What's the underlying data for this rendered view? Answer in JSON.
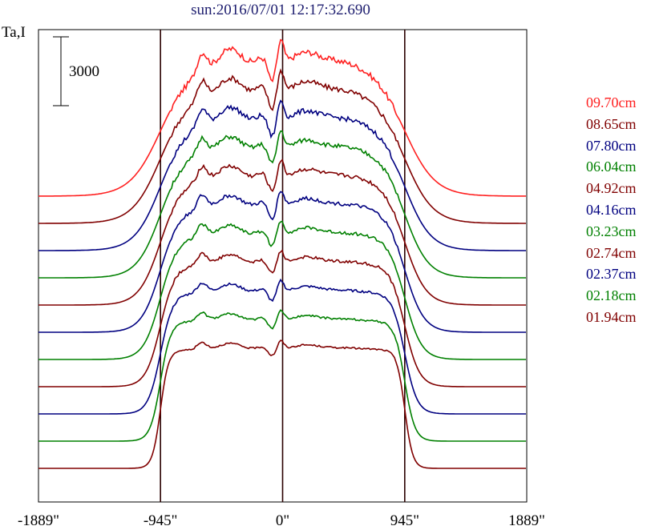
{
  "chart_data": {
    "type": "line",
    "title": "sun:2016/07/01 12:17:32.690",
    "ylabel": "Ta,I",
    "xlabel": "",
    "x_ticks": [
      {
        "value": -1889,
        "label": "-1889\""
      },
      {
        "value": -945,
        "label": "-945\""
      },
      {
        "value": 0,
        "label": "0\""
      },
      {
        "value": 945,
        "label": "945\""
      },
      {
        "value": 1889,
        "label": "1889\""
      }
    ],
    "xlim": [
      -1889,
      1889
    ],
    "vertical_markers": [
      -945,
      0,
      945
    ],
    "scale_bar": {
      "value": 3000,
      "label": "3000"
    },
    "colors": {
      "red": "#ff2020",
      "maroon": "#800000",
      "blue": "#000080",
      "green": "#008000"
    },
    "series": [
      {
        "name": "09.70cm",
        "color": "#ff2020",
        "offset": 0
      },
      {
        "name": "08.65cm",
        "color": "#800000",
        "offset": 1
      },
      {
        "name": "07.80cm",
        "color": "#000080",
        "offset": 2
      },
      {
        "name": "06.04cm",
        "color": "#008000",
        "offset": 3
      },
      {
        "name": "04.92cm",
        "color": "#800000",
        "offset": 4
      },
      {
        "name": "04.16cm",
        "color": "#000080",
        "offset": 5
      },
      {
        "name": "03.23cm",
        "color": "#008000",
        "offset": 6
      },
      {
        "name": "02.74cm",
        "color": "#800000",
        "offset": 7
      },
      {
        "name": "02.37cm",
        "color": "#000080",
        "offset": 8
      },
      {
        "name": "02.18cm",
        "color": "#008000",
        "offset": 9
      },
      {
        "name": "01.94cm",
        "color": "#800000",
        "offset": 10
      }
    ]
  }
}
